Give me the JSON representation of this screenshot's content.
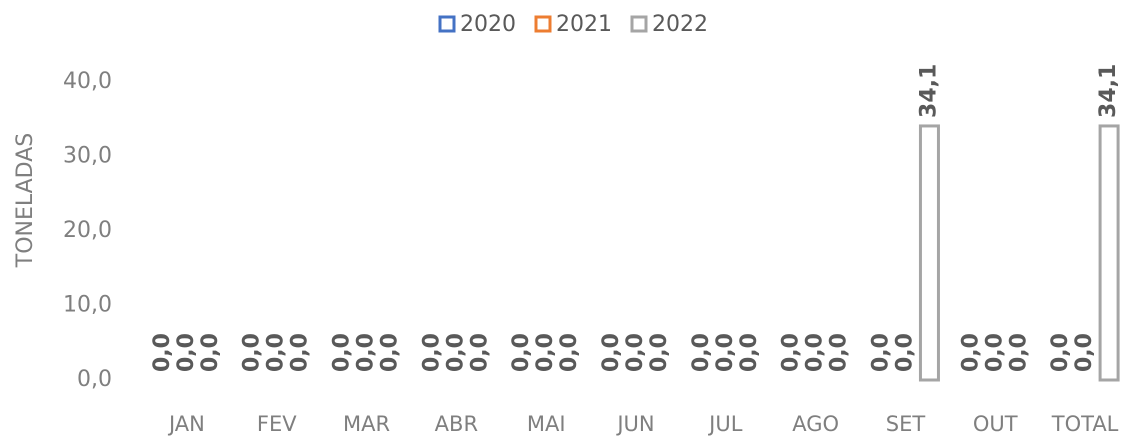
{
  "chart_data": {
    "type": "bar",
    "y_axis_label": "TONELADAS",
    "categories": [
      "JAN",
      "FEV",
      "MAR",
      "ABR",
      "MAI",
      "JUN",
      "JUL",
      "AGO",
      "SET",
      "OUT",
      "TOTAL"
    ],
    "series": [
      {
        "name": "2020",
        "color": "#4472c4",
        "values": [
          0,
          0,
          0,
          0,
          0,
          0,
          0,
          0,
          0,
          0,
          0
        ],
        "value_labels": [
          "0,0",
          "0,0",
          "0,0",
          "0,0",
          "0,0",
          "0,0",
          "0,0",
          "0,0",
          "0,0",
          "0,0",
          "0,0"
        ]
      },
      {
        "name": "2021",
        "color": "#ed7d31",
        "values": [
          0,
          0,
          0,
          0,
          0,
          0,
          0,
          0,
          0,
          0,
          0
        ],
        "value_labels": [
          "0,0",
          "0,0",
          "0,0",
          "0,0",
          "0,0",
          "0,0",
          "0,0",
          "0,0",
          "0,0",
          "0,0",
          "0,0"
        ]
      },
      {
        "name": "2022",
        "color": "#a5a5a5",
        "values": [
          0,
          0,
          0,
          0,
          0,
          0,
          0,
          0,
          34.1,
          0,
          34.1
        ],
        "value_labels": [
          "0,0",
          "0,0",
          "0,0",
          "0,0",
          "0,0",
          "0,0",
          "0,0",
          "0,0",
          "34,1",
          "0,0",
          "34,1"
        ]
      }
    ],
    "ylim": [
      0,
      40
    ],
    "yticks": [
      {
        "value": 0,
        "label": "0,0"
      },
      {
        "value": 10,
        "label": "10,0"
      },
      {
        "value": 20,
        "label": "20,0"
      },
      {
        "value": 30,
        "label": "30,0"
      },
      {
        "value": 40,
        "label": "40,0"
      }
    ],
    "legend": "top"
  }
}
